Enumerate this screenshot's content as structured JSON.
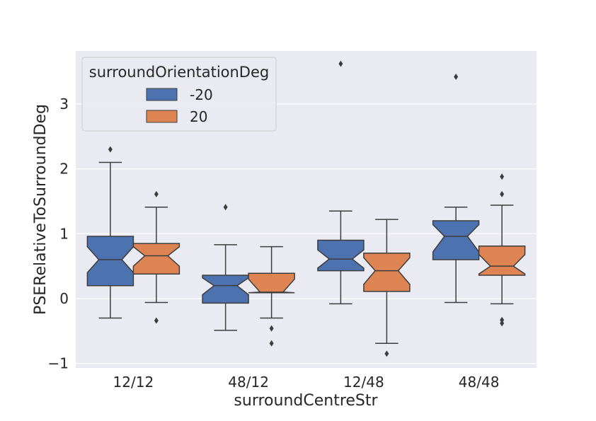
{
  "chart_data": {
    "type": "boxplot",
    "xlabel": "surroundCentreStr",
    "ylabel": "PSERelativeToSurroundDeg",
    "categories": [
      "12/12",
      "48/12",
      "12/48",
      "48/48"
    ],
    "ylim": [
      -1.1,
      3.8
    ],
    "yticks": [
      -1,
      0,
      1,
      2,
      3
    ],
    "ytick_labels": [
      "−1",
      "0",
      "1",
      "2",
      "3"
    ],
    "grid": true,
    "background": "#eaeaf2",
    "notched": true,
    "legend": {
      "title": "surroundOrientationDeg",
      "placement": "upper-left"
    },
    "series": [
      {
        "name": "-20",
        "color": "#4c72b0",
        "boxes": [
          {
            "whisker_low": -0.3,
            "q1": 0.2,
            "median": 0.6,
            "q3": 0.96,
            "whisker_high": 2.1,
            "notch_low": 0.4,
            "notch_high": 0.8,
            "outliers": [
              2.3
            ]
          },
          {
            "whisker_low": -0.49,
            "q1": -0.07,
            "median": 0.2,
            "q3": 0.36,
            "whisker_high": 0.83,
            "notch_low": 0.06,
            "notch_high": 0.32,
            "outliers": [
              1.41
            ]
          },
          {
            "whisker_low": -0.08,
            "q1": 0.43,
            "median": 0.61,
            "q3": 0.9,
            "whisker_high": 1.35,
            "notch_low": 0.47,
            "notch_high": 0.75,
            "outliers": [
              3.62
            ]
          },
          {
            "whisker_low": -0.06,
            "q1": 0.6,
            "median": 0.96,
            "q3": 1.2,
            "whisker_high": 1.41,
            "notch_low": 0.72,
            "notch_high": 1.14,
            "outliers": [
              3.42
            ]
          }
        ]
      },
      {
        "name": "20",
        "color": "#dd8452",
        "boxes": [
          {
            "whisker_low": -0.06,
            "q1": 0.38,
            "median": 0.66,
            "q3": 0.85,
            "whisker_high": 1.41,
            "notch_low": 0.5,
            "notch_high": 0.8,
            "outliers": [
              1.61,
              -0.34
            ]
          },
          {
            "whisker_low": -0.3,
            "q1": 0.09,
            "median": 0.1,
            "q3": 0.39,
            "whisker_high": 0.8,
            "notch_low": 0.09,
            "notch_high": 0.3,
            "outliers": [
              -0.46,
              -0.69
            ]
          },
          {
            "whisker_low": -0.69,
            "q1": 0.11,
            "median": 0.43,
            "q3": 0.7,
            "whisker_high": 1.22,
            "notch_low": 0.22,
            "notch_high": 0.63,
            "outliers": [
              -0.85
            ]
          },
          {
            "whisker_low": -0.08,
            "q1": 0.36,
            "median": 0.5,
            "q3": 0.81,
            "whisker_high": 1.44,
            "notch_low": 0.38,
            "notch_high": 0.68,
            "outliers": [
              1.88,
              1.61,
              -0.33,
              -0.38
            ]
          }
        ]
      }
    ]
  }
}
